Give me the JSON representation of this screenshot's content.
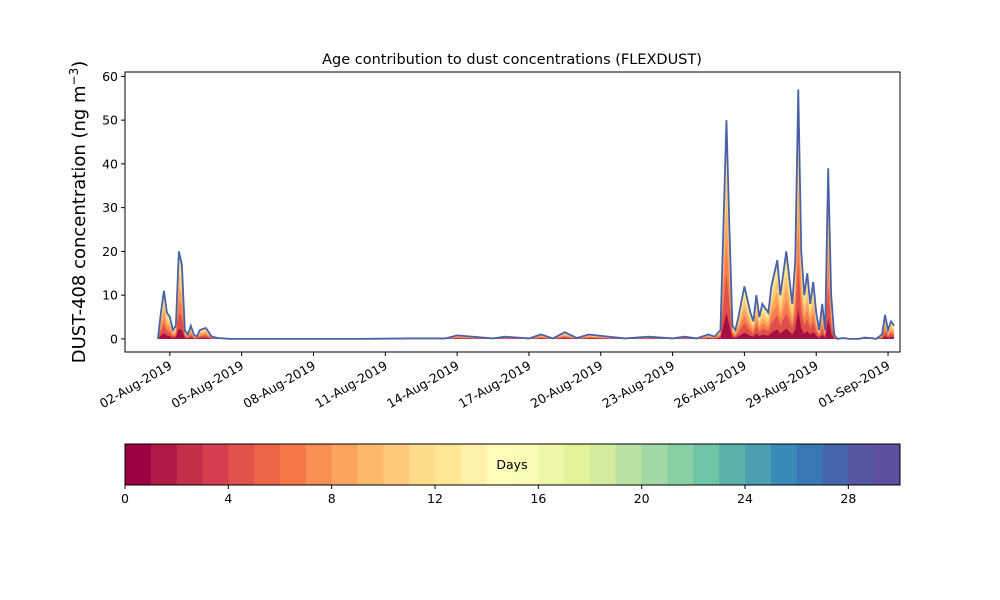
{
  "chart_data": {
    "type": "area",
    "title": "Age contribution to dust concentrations (FLEXDUST)",
    "ylabel": "DUST-408 concentration (ng m",
    "ylabel_exponent": "−3",
    "ylabel_suffix": ")",
    "xlabel": "",
    "ylim": [
      -3,
      61
    ],
    "yticks": [
      0,
      10,
      20,
      30,
      40,
      50,
      60
    ],
    "xlim": [
      "2019-07-31T03:00",
      "2019-09-01T12:00"
    ],
    "xticks": [
      "2019-08-02",
      "2019-08-05",
      "2019-08-08",
      "2019-08-11",
      "2019-08-14",
      "2019-08-17",
      "2019-08-20",
      "2019-08-23",
      "2019-08-26",
      "2019-08-29",
      "2019-09-01"
    ],
    "xtick_labels": [
      "02-Aug-2019",
      "05-Aug-2019",
      "08-Aug-2019",
      "11-Aug-2019",
      "14-Aug-2019",
      "17-Aug-2019",
      "20-Aug-2019",
      "23-Aug-2019",
      "26-Aug-2019",
      "29-Aug-2019",
      "01-Sep-2019"
    ],
    "grid": false,
    "total_series": {
      "x": [
        "2019-08-01T12:00",
        "2019-08-01T15:00",
        "2019-08-01T18:00",
        "2019-08-01T21:00",
        "2019-08-02T00:00",
        "2019-08-02T03:00",
        "2019-08-02T06:00",
        "2019-08-02T09:00",
        "2019-08-02T12:00",
        "2019-08-02T15:00",
        "2019-08-02T18:00",
        "2019-08-02T21:00",
        "2019-08-03T00:00",
        "2019-08-03T03:00",
        "2019-08-03T06:00",
        "2019-08-03T12:00",
        "2019-08-03T18:00",
        "2019-08-04T00:00",
        "2019-08-04T06:00",
        "2019-08-04T12:00",
        "2019-08-05T00:00",
        "2019-08-06T00:00",
        "2019-08-08T00:00",
        "2019-08-10T00:00",
        "2019-08-12T00:00",
        "2019-08-13T12:00",
        "2019-08-14T00:00",
        "2019-08-15T12:00",
        "2019-08-16T00:00",
        "2019-08-17T00:00",
        "2019-08-17T12:00",
        "2019-08-18T00:00",
        "2019-08-18T12:00",
        "2019-08-19T00:00",
        "2019-08-19T12:00",
        "2019-08-21T00:00",
        "2019-08-22T00:00",
        "2019-08-23T00:00",
        "2019-08-23T12:00",
        "2019-08-24T00:00",
        "2019-08-24T12:00",
        "2019-08-24T18:00",
        "2019-08-25T00:00",
        "2019-08-25T06:00",
        "2019-08-25T09:00",
        "2019-08-25T12:00",
        "2019-08-25T15:00",
        "2019-08-25T18:00",
        "2019-08-26T00:00",
        "2019-08-26T06:00",
        "2019-08-26T09:00",
        "2019-08-26T12:00",
        "2019-08-26T15:00",
        "2019-08-26T18:00",
        "2019-08-27T00:00",
        "2019-08-27T03:00",
        "2019-08-27T06:00",
        "2019-08-27T09:00",
        "2019-08-27T12:00",
        "2019-08-27T18:00",
        "2019-08-28T00:00",
        "2019-08-28T03:00",
        "2019-08-28T06:00",
        "2019-08-28T09:00",
        "2019-08-28T12:00",
        "2019-08-28T15:00",
        "2019-08-28T18:00",
        "2019-08-28T21:00",
        "2019-08-29T00:00",
        "2019-08-29T03:00",
        "2019-08-29T06:00",
        "2019-08-29T09:00",
        "2019-08-29T12:00",
        "2019-08-29T15:00",
        "2019-08-29T18:00",
        "2019-08-29T21:00",
        "2019-08-30T00:00",
        "2019-08-30T03:00",
        "2019-08-30T06:00",
        "2019-08-30T09:00",
        "2019-08-30T12:00",
        "2019-08-30T15:00",
        "2019-08-30T18:00",
        "2019-08-30T21:00",
        "2019-08-31T00:00",
        "2019-08-31T06:00",
        "2019-08-31T12:00",
        "2019-08-31T18:00",
        "2019-08-31T21:00",
        "2019-09-01T00:00",
        "2019-09-01T03:00",
        "2019-09-01T06:00"
      ],
      "y": [
        0,
        6,
        11,
        6,
        5,
        2,
        3,
        20,
        17,
        2,
        1,
        3,
        1,
        0.5,
        2,
        2.5,
        0.5,
        0.2,
        0.1,
        0,
        0,
        0,
        0,
        0,
        0.1,
        0.1,
        0.8,
        0.1,
        0.5,
        0.1,
        1,
        0.1,
        1.5,
        0.2,
        1,
        0.1,
        0.5,
        0.1,
        0.5,
        0.1,
        1,
        0.5,
        2,
        50,
        25,
        3,
        2,
        5,
        12,
        6,
        4,
        10,
        5,
        8,
        6,
        12,
        15,
        18,
        10,
        20,
        8,
        18,
        57,
        20,
        10,
        15,
        8,
        13,
        6,
        2,
        8,
        2,
        39,
        10,
        1,
        0,
        0.1,
        0.2,
        0.1,
        0,
        0,
        0,
        0,
        0.1,
        0.3,
        0.2,
        0,
        1,
        5.5,
        2,
        4,
        3
      ]
    },
    "colorbar": {
      "label": "Days",
      "min": 0,
      "max": 30,
      "ticks": [
        0,
        4,
        8,
        12,
        16,
        20,
        24,
        28
      ],
      "colors": [
        "#9e0142",
        "#b11a46",
        "#c42f4a",
        "#d53e4f",
        "#e2514a",
        "#ed6345",
        "#f57748",
        "#f98e52",
        "#fca35d",
        "#fdb868",
        "#fdca79",
        "#fedb8b",
        "#fee695",
        "#fff1a8",
        "#fffcbb",
        "#f8fcb4",
        "#eff8a6",
        "#e3f399",
        "#d0ec9c",
        "#b9e2a1",
        "#a1d9a4",
        "#88cfa4",
        "#70c4a6",
        "#5bb1aa",
        "#4b9fb0",
        "#3a8ab8",
        "#3878b4",
        "#4566ad",
        "#5656a5",
        "#5e4fa2"
      ]
    },
    "line_color": "#4a60a9",
    "fill_bands": [
      {
        "color": "#a50f42",
        "frac": 0.12
      },
      {
        "color": "#e0504a",
        "frac": 0.3
      },
      {
        "color": "#f57e4c",
        "frac": 0.45
      },
      {
        "color": "#fba45e",
        "frac": 0.6
      },
      {
        "color": "#fdc877",
        "frac": 0.75
      },
      {
        "color": "#fee390",
        "frac": 0.88
      },
      {
        "color": "#d7ef9f",
        "frac": 0.95
      }
    ]
  }
}
